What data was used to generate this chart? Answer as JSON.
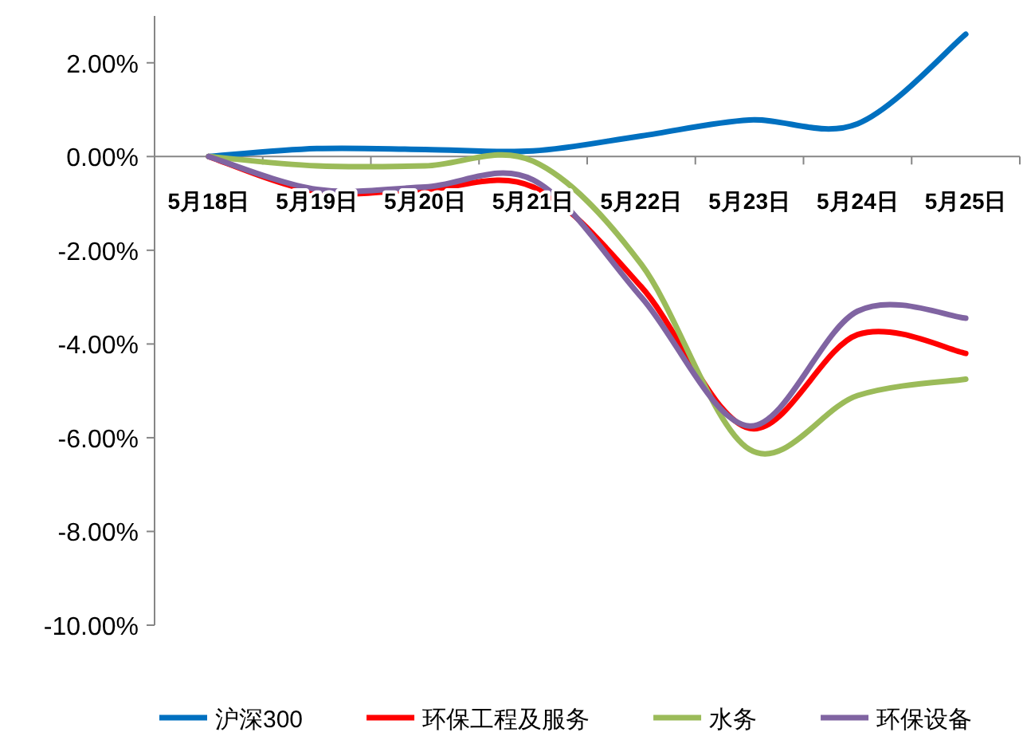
{
  "chart_data": {
    "type": "line",
    "categories": [
      "5月18日",
      "5月19日",
      "5月20日",
      "5月21日",
      "5月22日",
      "5月23日",
      "5月24日",
      "5月25日"
    ],
    "series": [
      {
        "name": "沪深300",
        "color": "#0070c0",
        "values": [
          0,
          0.17,
          0.15,
          0.12,
          0.44,
          0.78,
          0.7,
          2.61
        ]
      },
      {
        "name": "环保工程及服务",
        "color": "#ff0000",
        "values": [
          0,
          -0.75,
          -0.7,
          -0.65,
          -2.78,
          -5.8,
          -3.8,
          -4.2
        ]
      },
      {
        "name": "水务",
        "color": "#9bbb59",
        "values": [
          0,
          -0.2,
          -0.2,
          -0.1,
          -2.3,
          -6.25,
          -5.1,
          -4.75
        ]
      },
      {
        "name": "环保设备",
        "color": "#8064a2",
        "values": [
          0,
          -0.7,
          -0.65,
          -0.5,
          -3.0,
          -5.75,
          -3.3,
          -3.45
        ]
      }
    ],
    "ylim": [
      -10,
      3
    ],
    "yticks": [
      {
        "value": -10,
        "label": "-10.00%"
      },
      {
        "value": -8,
        "label": "-8.00%"
      },
      {
        "value": -6,
        "label": "-6.00%"
      },
      {
        "value": -4,
        "label": "-4.00%"
      },
      {
        "value": -2,
        "label": "-2.00%"
      },
      {
        "value": 0,
        "label": "0.00%"
      },
      {
        "value": 2,
        "label": "2.00%"
      }
    ],
    "grid": false,
    "legend": "bottom",
    "marker": "none",
    "line_style": "solid"
  }
}
